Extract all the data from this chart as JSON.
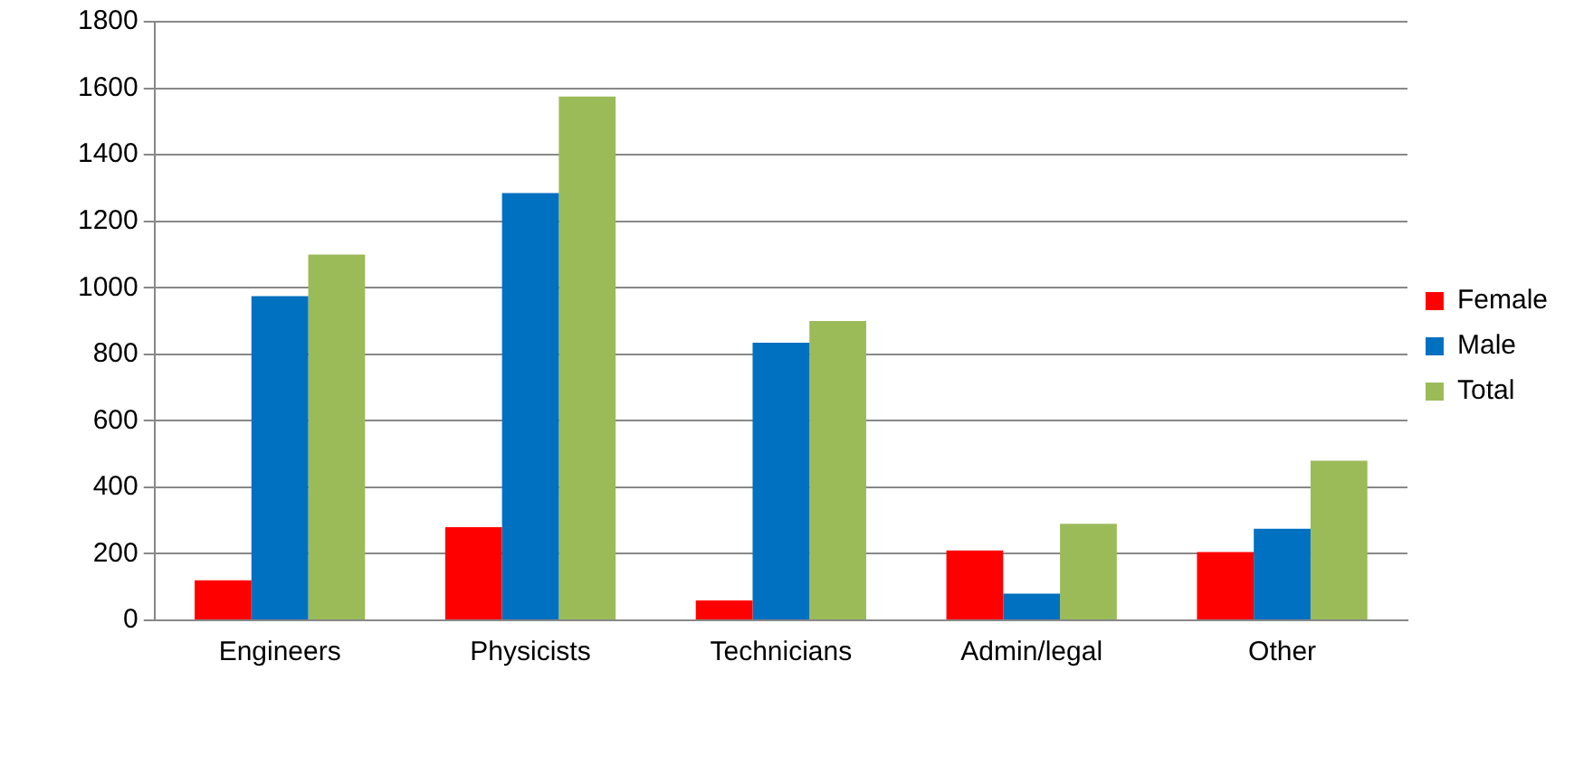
{
  "chart_data": {
    "type": "bar",
    "categories": [
      "Engineers",
      "Physicists",
      "Technicians",
      "Admin/legal",
      "Other"
    ],
    "series": [
      {
        "name": "Female",
        "color": "#ff0000",
        "values": [
          120,
          280,
          60,
          210,
          205
        ]
      },
      {
        "name": "Male",
        "color": "#0070c0",
        "values": [
          975,
          1285,
          835,
          80,
          275
        ]
      },
      {
        "name": "Total",
        "color": "#9bbb59",
        "values": [
          1100,
          1575,
          900,
          290,
          480
        ]
      }
    ],
    "ylim": [
      0,
      1800
    ],
    "yticks": [
      0,
      200,
      400,
      600,
      800,
      1000,
      1200,
      1400,
      1600,
      1800
    ],
    "grid": "y",
    "legend": "right"
  }
}
